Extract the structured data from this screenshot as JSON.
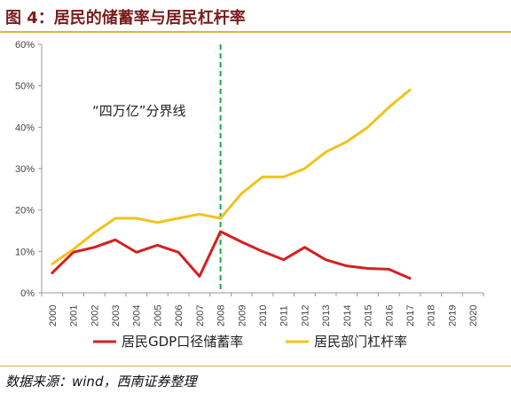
{
  "header": {
    "title": "图 4：居民的储蓄率与居民杠杆率"
  },
  "footer": {
    "source": "数据来源：wind，西南证券整理"
  },
  "chart_data": {
    "type": "line",
    "x": [
      "2000",
      "2001",
      "2002",
      "2003",
      "2004",
      "2005",
      "2006",
      "2007",
      "2008",
      "2009",
      "2010",
      "2011",
      "2012",
      "2013",
      "2014",
      "2015",
      "2016",
      "2017",
      "2018",
      "2019",
      "2020"
    ],
    "y_ticks": [
      "0%",
      "10%",
      "20%",
      "30%",
      "40%",
      "50%",
      "60%"
    ],
    "ylim": [
      0,
      60
    ],
    "grid": false,
    "legend": "bottom",
    "series": [
      {
        "name": "居民GDP口径储蓄率",
        "color": "#d42020",
        "values": [
          4.8,
          9.8,
          11.0,
          12.8,
          9.8,
          11.5,
          9.8,
          4.0,
          14.8,
          12.3,
          10.0,
          8.0,
          11.0,
          8.0,
          6.5,
          5.9,
          5.7,
          3.5,
          null,
          null,
          null
        ]
      },
      {
        "name": "居民部门杠杆率",
        "color": "#f2c21a",
        "values": [
          7.0,
          10.5,
          14.5,
          18.0,
          18.0,
          17.0,
          18.0,
          19.0,
          18.0,
          24.0,
          28.0,
          28.0,
          30.0,
          34.0,
          36.5,
          40.0,
          44.8,
          49.0,
          null,
          null,
          null
        ]
      }
    ],
    "divider": {
      "x": "2008",
      "color": "#1aa84a",
      "label": "“四万亿”分界线"
    }
  }
}
